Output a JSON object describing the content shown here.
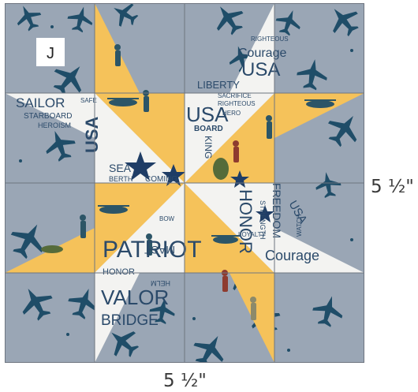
{
  "block_label": "J",
  "dimension_right": "5 ½\"",
  "dimension_bottom": "5 ½\"",
  "colors": {
    "background_fabric": "#9aa6b5",
    "gold_fabric": "#f5c25a",
    "print_fabric": "#f3f3f1",
    "motif": "#1f4d68",
    "seam": "#6e7580"
  },
  "fabric_words": [
    "SAILOR",
    "STARBOARD",
    "HEROISM",
    "USA",
    "SEA",
    "BERTH",
    "COMING",
    "USA",
    "BOARD",
    "LIBERTY",
    "SACRIFICE",
    "Courage",
    "USA",
    "RIGHTEOUS",
    "KING",
    "FREEDOM",
    "STRENGTH",
    "HONOR",
    "LOYALTY",
    "Courage",
    "WATCH",
    "USA",
    "MAST",
    "PATRIOT",
    "HONOR",
    "VALOR",
    "BRIDGE",
    "HELM",
    "SAFE",
    "RIGHTEOUS",
    "HERO",
    "BOW"
  ]
}
